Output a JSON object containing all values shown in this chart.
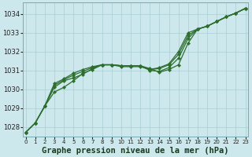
{
  "xlabel": "Graphe pression niveau de la mer (hPa)",
  "x": [
    0,
    1,
    2,
    3,
    4,
    5,
    6,
    7,
    8,
    9,
    10,
    11,
    12,
    13,
    14,
    15,
    16,
    17,
    18,
    19,
    20,
    21,
    22,
    23
  ],
  "line1": [
    1027.7,
    1028.2,
    1029.1,
    1029.85,
    1030.1,
    1030.45,
    1030.85,
    1031.05,
    1031.3,
    1031.3,
    1031.25,
    1031.25,
    1031.25,
    1031.1,
    1030.9,
    1031.05,
    1031.3,
    1032.45,
    1033.2,
    1033.35,
    1033.6,
    1033.85,
    1034.05,
    1034.3
  ],
  "line2": [
    1027.7,
    1028.2,
    1029.1,
    1030.1,
    1030.45,
    1030.6,
    1030.8,
    1031.1,
    1031.3,
    1031.3,
    1031.25,
    1031.25,
    1031.25,
    1031.0,
    1030.95,
    1031.15,
    1031.65,
    1032.7,
    1033.2,
    1033.35,
    1033.6,
    1033.85,
    1034.05,
    1034.3
  ],
  "line3": [
    1027.7,
    1028.2,
    1029.1,
    1030.2,
    1030.5,
    1030.75,
    1030.95,
    1031.15,
    1031.3,
    1031.3,
    1031.25,
    1031.25,
    1031.25,
    1031.05,
    1031.1,
    1031.3,
    1031.85,
    1032.85,
    1033.2,
    1033.35,
    1033.6,
    1033.85,
    1034.05,
    1034.3
  ],
  "line4": [
    1027.7,
    1028.2,
    1029.1,
    1030.3,
    1030.55,
    1030.85,
    1031.05,
    1031.2,
    1031.3,
    1031.3,
    1031.2,
    1031.2,
    1031.2,
    1031.05,
    1031.15,
    1031.35,
    1032.0,
    1033.0,
    1033.2,
    1033.35,
    1033.6,
    1033.85,
    1034.05,
    1034.3
  ],
  "bg_color": "#cce8ec",
  "grid_color": "#aacdd3",
  "line_color": "#2d6e2d",
  "marker": "D",
  "marker_size": 2.2,
  "ylim": [
    1027.5,
    1034.6
  ],
  "xlim": [
    -0.3,
    23.3
  ],
  "yticks": [
    1028,
    1029,
    1030,
    1031,
    1032,
    1033,
    1034
  ],
  "xticks": [
    0,
    1,
    2,
    3,
    4,
    5,
    6,
    7,
    8,
    9,
    10,
    11,
    12,
    13,
    14,
    15,
    16,
    17,
    18,
    19,
    20,
    21,
    22,
    23
  ],
  "xlabel_fontsize": 7.5,
  "tick_fontsize": 6,
  "line_width": 0.9
}
